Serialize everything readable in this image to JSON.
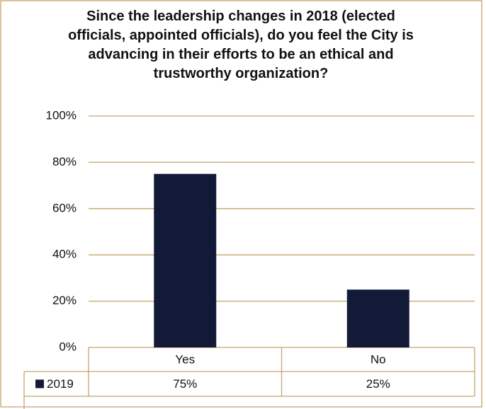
{
  "chart_data": {
    "type": "bar",
    "title": "Since the leadership changes in 2018 (elected officials, appointed officials), do you feel the City is advancing in their efforts to be an ethical and trustworthy organization?",
    "categories": [
      "Yes",
      "No"
    ],
    "series": [
      {
        "name": "2019",
        "color": "#131a38",
        "values": [
          75,
          25
        ],
        "value_labels": [
          "75%",
          "25%"
        ]
      }
    ],
    "ylim": [
      0,
      100
    ],
    "yticks": [
      {
        "value": 0,
        "label": "0%"
      },
      {
        "value": 20,
        "label": "20%"
      },
      {
        "value": 40,
        "label": "40%"
      },
      {
        "value": 60,
        "label": "60%"
      },
      {
        "value": 80,
        "label": "80%"
      },
      {
        "value": 100,
        "label": "100%"
      }
    ],
    "grid": true,
    "data_table": true
  }
}
